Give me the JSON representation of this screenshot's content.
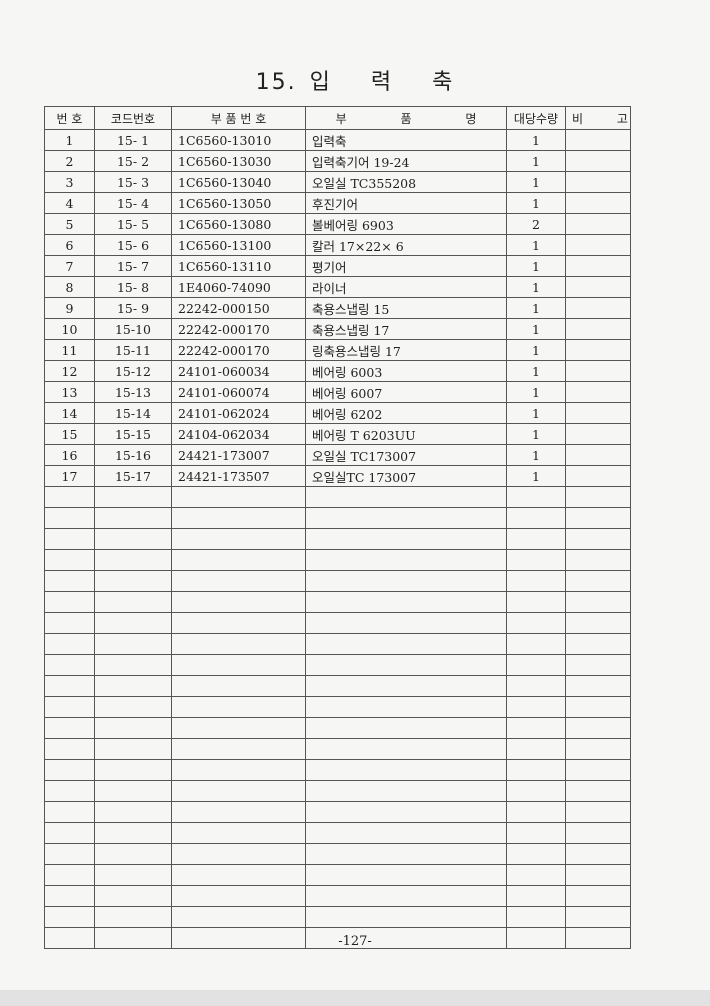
{
  "title": {
    "number": "15.",
    "text": "입 력 축"
  },
  "columns": [
    "번 호",
    "코드번호",
    "부 품 번 호",
    "부 품 명",
    "대당수량",
    "비 고"
  ],
  "rows": [
    {
      "no": "1",
      "code": "15- 1",
      "part_no": "1C6560-13010",
      "name": "입력축",
      "qty": "1",
      "note": ""
    },
    {
      "no": "2",
      "code": "15- 2",
      "part_no": "1C6560-13030",
      "name": "입력축기어 19-24",
      "qty": "1",
      "note": ""
    },
    {
      "no": "3",
      "code": "15- 3",
      "part_no": "1C6560-13040",
      "name": "오일실 TC355208",
      "qty": "1",
      "note": ""
    },
    {
      "no": "4",
      "code": "15- 4",
      "part_no": "1C6560-13050",
      "name": "후진기어",
      "qty": "1",
      "note": ""
    },
    {
      "no": "5",
      "code": "15- 5",
      "part_no": "1C6560-13080",
      "name": "볼베어링 6903",
      "qty": "2",
      "note": ""
    },
    {
      "no": "6",
      "code": "15- 6",
      "part_no": "1C6560-13100",
      "name": "칼러 17×22× 6",
      "qty": "1",
      "note": ""
    },
    {
      "no": "7",
      "code": "15- 7",
      "part_no": "1C6560-13110",
      "name": "평기어",
      "qty": "1",
      "note": ""
    },
    {
      "no": "8",
      "code": "15- 8",
      "part_no": "1E4060-74090",
      "name": "라이너",
      "qty": "1",
      "note": ""
    },
    {
      "no": "9",
      "code": "15- 9",
      "part_no": "22242-000150",
      "name": "축용스냅링 15",
      "qty": "1",
      "note": ""
    },
    {
      "no": "10",
      "code": "15-10",
      "part_no": "22242-000170",
      "name": "축용스냅링 17",
      "qty": "1",
      "note": ""
    },
    {
      "no": "11",
      "code": "15-11",
      "part_no": "22242-000170",
      "name": "링축용스냅링 17",
      "qty": "1",
      "note": ""
    },
    {
      "no": "12",
      "code": "15-12",
      "part_no": "24101-060034",
      "name": "베어링 6003",
      "qty": "1",
      "note": ""
    },
    {
      "no": "13",
      "code": "15-13",
      "part_no": "24101-060074",
      "name": "베어링 6007",
      "qty": "1",
      "note": ""
    },
    {
      "no": "14",
      "code": "15-14",
      "part_no": "24101-062024",
      "name": "베어링 6202",
      "qty": "1",
      "note": ""
    },
    {
      "no": "15",
      "code": "15-15",
      "part_no": "24104-062034",
      "name": "베어링 T 6203UU",
      "qty": "1",
      "note": ""
    },
    {
      "no": "16",
      "code": "15-16",
      "part_no": "24421-173007",
      "name": "오일실 TC173007",
      "qty": "1",
      "note": ""
    },
    {
      "no": "17",
      "code": "15-17",
      "part_no": "24421-173507",
      "name": "오일실TC 173007",
      "qty": "1",
      "note": ""
    }
  ],
  "footer": {
    "page": "-127-"
  }
}
